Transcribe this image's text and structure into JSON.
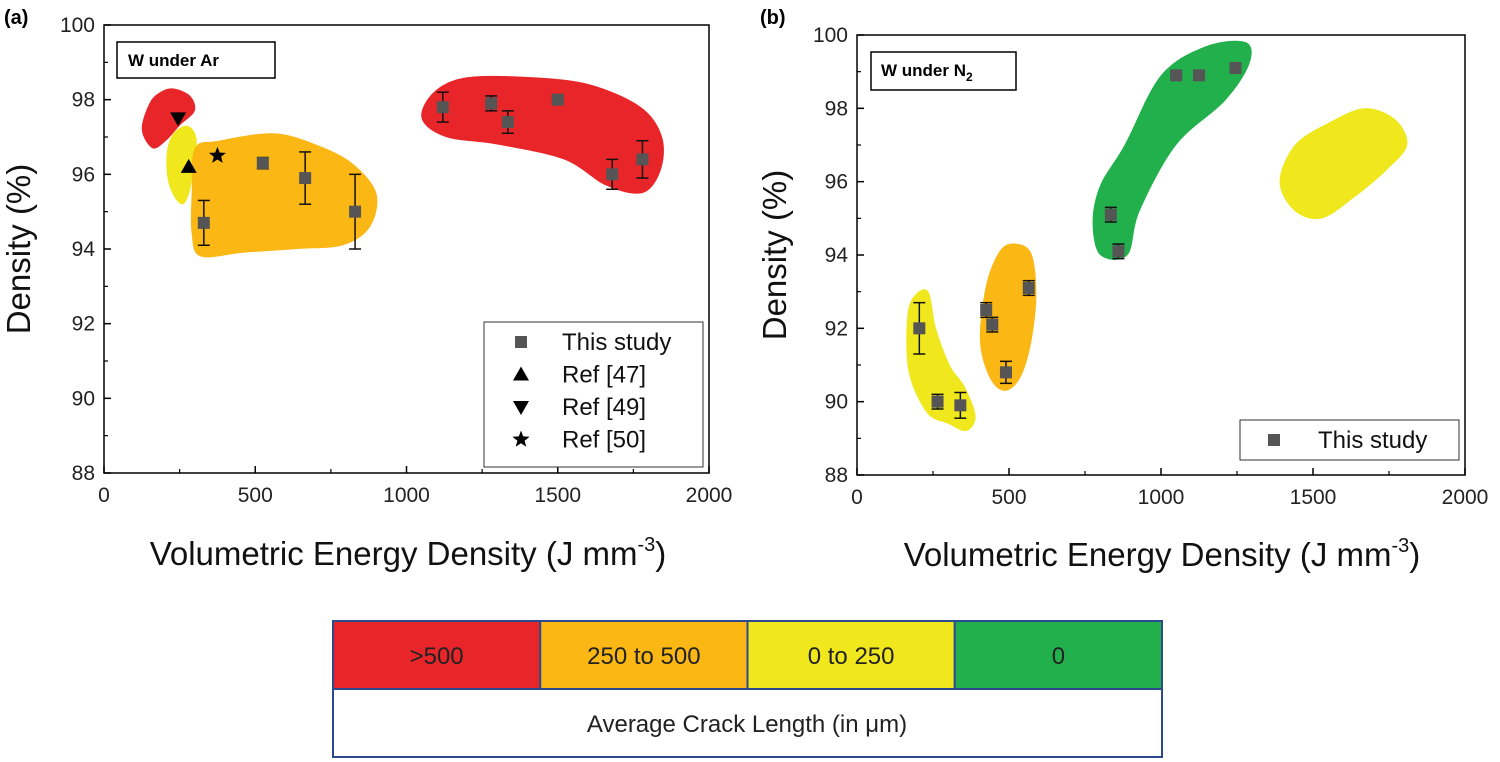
{
  "chart_data": [
    {
      "type": "scatter",
      "panel_label": "(a)",
      "annotation": "W under Ar",
      "xlabel": "Volumetric Energy Density (J mm",
      "xlabel_sup": "-3",
      "xlabel_close": ")",
      "ylabel": "Density (%)",
      "xlim": [
        0,
        2000
      ],
      "ylim": [
        88,
        100
      ],
      "xticks": [
        "0",
        "500",
        "1000",
        "1500",
        "2000"
      ],
      "yticks": [
        "88",
        "90",
        "92",
        "94",
        "96",
        "98",
        "100"
      ],
      "grid": false,
      "legend_position": "bottom-right",
      "series": [
        {
          "name": "This study",
          "marker": "square",
          "color": "#555555",
          "points": [
            {
              "x": 330,
              "y": 94.7,
              "err": 0.6
            },
            {
              "x": 525,
              "y": 96.3,
              "err": 0.15
            },
            {
              "x": 665,
              "y": 95.9,
              "err": 0.7
            },
            {
              "x": 830,
              "y": 95.0,
              "err": 1.0
            },
            {
              "x": 1120,
              "y": 97.8,
              "err": 0.4
            },
            {
              "x": 1280,
              "y": 97.9,
              "err": 0.2
            },
            {
              "x": 1335,
              "y": 97.4,
              "err": 0.3
            },
            {
              "x": 1500,
              "y": 98.0,
              "err": 0.1
            },
            {
              "x": 1680,
              "y": 96.0,
              "err": 0.4
            },
            {
              "x": 1780,
              "y": 96.4,
              "err": 0.5
            }
          ]
        },
        {
          "name": "Ref [47]",
          "marker": "triangle-up",
          "color": "#000000",
          "points": [
            {
              "x": 280,
              "y": 96.2
            }
          ]
        },
        {
          "name": "Ref [49]",
          "marker": "triangle-down",
          "color": "#000000",
          "points": [
            {
              "x": 245,
              "y": 97.5
            }
          ]
        },
        {
          "name": "Ref [50]",
          "marker": "star",
          "color": "#000000",
          "points": [
            {
              "x": 375,
              "y": 96.5
            }
          ]
        }
      ],
      "regions": [
        {
          "category": "red",
          "points": [
            [
              150,
              97.9
            ],
            [
              185,
              98.2
            ],
            [
              230,
              98.3
            ],
            [
              285,
              98.1
            ],
            [
              300,
              97.7
            ],
            [
              250,
              97.3
            ],
            [
              205,
              96.9
            ],
            [
              160,
              96.7
            ],
            [
              125,
              97.2
            ]
          ]
        },
        {
          "category": "yellow",
          "points": [
            [
              230,
              97.1
            ],
            [
              275,
              97.3
            ],
            [
              305,
              97.0
            ],
            [
              300,
              96.4
            ],
            [
              285,
              95.6
            ],
            [
              262,
              95.2
            ],
            [
              232,
              95.4
            ],
            [
              210,
              95.9
            ],
            [
              208,
              96.6
            ]
          ]
        },
        {
          "category": "orange",
          "points": [
            [
              300,
              96.7
            ],
            [
              380,
              96.9
            ],
            [
              560,
              97.1
            ],
            [
              700,
              96.8
            ],
            [
              820,
              96.3
            ],
            [
              900,
              95.5
            ],
            [
              880,
              94.6
            ],
            [
              790,
              94.1
            ],
            [
              640,
              94.0
            ],
            [
              460,
              93.9
            ],
            [
              320,
              93.8
            ],
            [
              290,
              94.4
            ],
            [
              290,
              95.5
            ]
          ]
        },
        {
          "category": "red",
          "points": [
            [
              1090,
              98.2
            ],
            [
              1200,
              98.6
            ],
            [
              1420,
              98.6
            ],
            [
              1610,
              98.4
            ],
            [
              1775,
              97.8
            ],
            [
              1845,
              97.0
            ],
            [
              1840,
              96.1
            ],
            [
              1780,
              95.5
            ],
            [
              1660,
              95.7
            ],
            [
              1520,
              96.4
            ],
            [
              1300,
              96.8
            ],
            [
              1130,
              97.0
            ],
            [
              1050,
              97.5
            ]
          ]
        }
      ]
    },
    {
      "type": "scatter",
      "panel_label": "(b)",
      "annotation": "W under N",
      "annotation_sub": "2",
      "xlabel": "Volumetric Energy Density (J mm",
      "xlabel_sup": "-3",
      "xlabel_close": ")",
      "ylabel": "Density (%)",
      "xlim": [
        0,
        2000
      ],
      "ylim": [
        88,
        100
      ],
      "xticks": [
        "0",
        "500",
        "1000",
        "1500",
        "2000"
      ],
      "yticks": [
        "88",
        "90",
        "92",
        "94",
        "96",
        "98",
        "100"
      ],
      "grid": false,
      "legend_position": "bottom-right",
      "series": [
        {
          "name": "This study",
          "marker": "square",
          "color": "#555555",
          "points": [
            {
              "x": 205,
              "y": 92.0,
              "err": 0.7
            },
            {
              "x": 265,
              "y": 90.0,
              "err": 0.2
            },
            {
              "x": 340,
              "y": 89.9,
              "err": 0.35
            },
            {
              "x": 425,
              "y": 92.5,
              "err": 0.2
            },
            {
              "x": 445,
              "y": 92.1,
              "err": 0.2
            },
            {
              "x": 490,
              "y": 90.8,
              "err": 0.3
            },
            {
              "x": 565,
              "y": 93.1,
              "err": 0.2
            },
            {
              "x": 835,
              "y": 95.1,
              "err": 0.2
            },
            {
              "x": 860,
              "y": 94.1,
              "err": 0.2
            },
            {
              "x": 1050,
              "y": 98.9,
              "err": 0.1
            },
            {
              "x": 1125,
              "y": 98.9,
              "err": 0.1
            },
            {
              "x": 1245,
              "y": 99.1,
              "err": 0.1
            }
          ]
        }
      ],
      "regions": [
        {
          "category": "green",
          "points": [
            [
              880,
              97.0
            ],
            [
              1000,
              98.9
            ],
            [
              1150,
              99.7
            ],
            [
              1280,
              99.8
            ],
            [
              1290,
              99.2
            ],
            [
              1210,
              98.2
            ],
            [
              1050,
              97.0
            ],
            [
              930,
              95.2
            ],
            [
              890,
              94.0
            ],
            [
              800,
              94.0
            ],
            [
              775,
              94.9
            ],
            [
              800,
              95.9
            ]
          ]
        },
        {
          "category": "orange",
          "points": [
            [
              500,
              94.3
            ],
            [
              570,
              94.1
            ],
            [
              590,
              93.0
            ],
            [
              575,
              91.7
            ],
            [
              540,
              90.7
            ],
            [
              490,
              90.3
            ],
            [
              440,
              90.6
            ],
            [
              405,
              91.6
            ],
            [
              420,
              93.0
            ],
            [
              455,
              93.9
            ]
          ]
        },
        {
          "category": "yellow",
          "points": [
            [
              190,
              92.9
            ],
            [
              235,
              93.0
            ],
            [
              260,
              92.0
            ],
            [
              305,
              91.0
            ],
            [
              355,
              90.4
            ],
            [
              390,
              89.6
            ],
            [
              360,
              89.2
            ],
            [
              300,
              89.4
            ],
            [
              230,
              89.7
            ],
            [
              170,
              90.8
            ],
            [
              165,
              92.3
            ]
          ]
        },
        {
          "category": "yellow",
          "points": [
            [
              1440,
              97.0
            ],
            [
              1550,
              97.6
            ],
            [
              1670,
              98.0
            ],
            [
              1770,
              97.7
            ],
            [
              1810,
              97.0
            ],
            [
              1740,
              96.3
            ],
            [
              1640,
              95.6
            ],
            [
              1530,
              95.0
            ],
            [
              1440,
              95.2
            ],
            [
              1390,
              96.0
            ]
          ]
        }
      ]
    }
  ],
  "crack_legend": {
    "categories": [
      {
        "key": "red",
        "label": ">500",
        "color": "#e8262a"
      },
      {
        "key": "orange",
        "label": "250 to 500",
        "color": "#fbb713"
      },
      {
        "key": "yellow",
        "label": "0 to 250",
        "color": "#f0e81d"
      },
      {
        "key": "green",
        "label": "0",
        "color": "#21b04b"
      }
    ],
    "title": "Average Crack Length (in μm)",
    "border_color": "#2e4a8f"
  }
}
